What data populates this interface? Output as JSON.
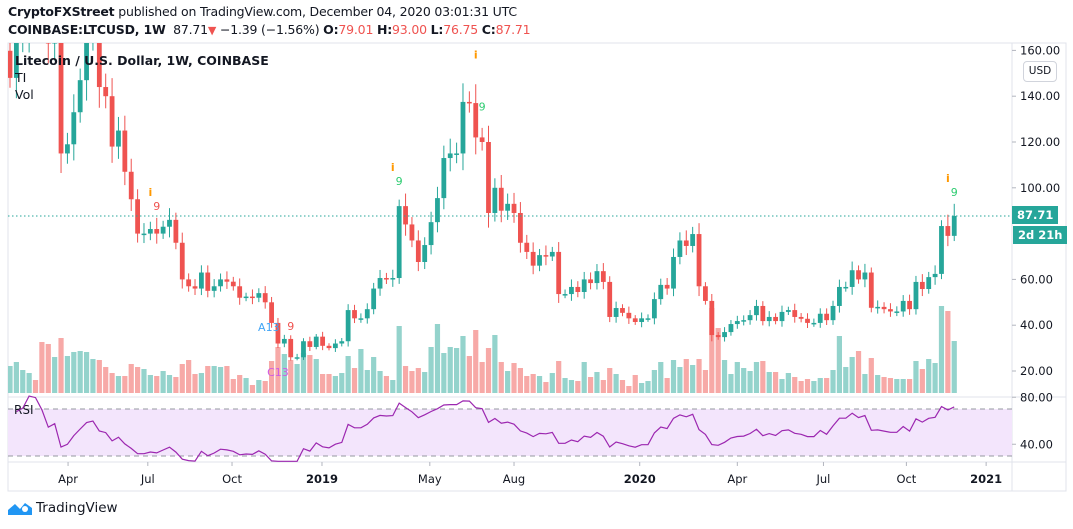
{
  "header": {
    "publisher": "CryptoFXStreet",
    "published_text": "published on TradingView.com, December 04, 2020 03:01:31 UTC",
    "symbol": "COINBASE:LTCUSD, 1W",
    "last": "87.71",
    "change": "−1.39 (−1.56%)",
    "o_label": "O:",
    "o": "79.01",
    "h_label": "H:",
    "h": "93.00",
    "l_label": "L:",
    "l": "76.75",
    "c_label": "C:",
    "c": "87.71"
  },
  "legend": {
    "title": "Litecoin / U.S. Dollar, 1W, COINBASE",
    "indicator1": "TI",
    "indicator2": "Vol"
  },
  "price_axis": {
    "currency": "USD",
    "last_price_label": "87.71",
    "countdown_label": "2d 21h"
  },
  "footer": {
    "brand": "TradingView"
  },
  "colors": {
    "up": "#26a69a",
    "down": "#ef5350",
    "up_vol": "#94d3cc",
    "down_vol": "#f7a9a7",
    "rsi": "#9c27b0",
    "rsi_band": "#f3e5fc",
    "td_buy": "#2ecc71",
    "td_sell": "#ef5350",
    "td_info": "#ff9800",
    "a13": "#42a5f5",
    "c13": "#d05ce3"
  },
  "chart_data": {
    "type": "candlestick",
    "interval": "1W",
    "ylim": [
      13,
      162
    ],
    "price_ticks": [
      20,
      40,
      60,
      100,
      120,
      140,
      160
    ],
    "time_ticks": [
      "Apr",
      "Jul",
      "Oct",
      "2019",
      "May",
      "Aug",
      "2020",
      "Apr",
      "Jul",
      "Oct",
      "2021"
    ],
    "closes": [
      148,
      165,
      170,
      210,
      205,
      190,
      163,
      170,
      115,
      119,
      133,
      147,
      165,
      170,
      144,
      140,
      118,
      125,
      107,
      95,
      80,
      80,
      82,
      80,
      83,
      86,
      76,
      60,
      57,
      56,
      63,
      55,
      57,
      60,
      59,
      57,
      52,
      52.5,
      52,
      54,
      50,
      41,
      32,
      34,
      26,
      26,
      33,
      30.5,
      35,
      31,
      30,
      32,
      33,
      46.6,
      43,
      43,
      47,
      56,
      60.6,
      60,
      60.6,
      92,
      84,
      77,
      67.6,
      75,
      85,
      95.5,
      113,
      115,
      115,
      137.5,
      137,
      122,
      120,
      89,
      100,
      90,
      93,
      89,
      76,
      72,
      66,
      70.6,
      70,
      72,
      53.6,
      53.6,
      56.7,
      54.5,
      60,
      58.4,
      63.6,
      58.9,
      43.6,
      47.5,
      45.4,
      43,
      41.4,
      43,
      43,
      51.4,
      57.6,
      56,
      69.8,
      77,
      74.6,
      79.8,
      57,
      50.6,
      35.7,
      34.8,
      37,
      40.5,
      41.8,
      42.2,
      44.4,
      48.4,
      41.8,
      43.6,
      41.8,
      45.8,
      46.6,
      43.6,
      42.8,
      41,
      41,
      45,
      42.2,
      48.4,
      56.7,
      56.7,
      64,
      60,
      63,
      47.6,
      48,
      47,
      46,
      46,
      50.6,
      47,
      58.9,
      55.8,
      61,
      62.4,
      83.3,
      79,
      87.71
    ],
    "last_bar": {
      "open": 79.01,
      "high": 93.0,
      "low": 76.75,
      "close": 87.71
    },
    "volume_relative": [
      27,
      31,
      23,
      20,
      13,
      51,
      49,
      36,
      55,
      37,
      41,
      42,
      41,
      34,
      33,
      26,
      20,
      17,
      17,
      29,
      26,
      24,
      18,
      17,
      22,
      18,
      16,
      29,
      33,
      19,
      20,
      27,
      27,
      26,
      27,
      14,
      18,
      15,
      8,
      13,
      12,
      32,
      46,
      39,
      33,
      29,
      40,
      38,
      34,
      19,
      19,
      17,
      20,
      37,
      25,
      44,
      23,
      36,
      22,
      17,
      13,
      67,
      27,
      22,
      25,
      21,
      46,
      69,
      40,
      46,
      45,
      57,
      37,
      63,
      31,
      45,
      58,
      31,
      22,
      30,
      25,
      17,
      19,
      17,
      11,
      20,
      32,
      15,
      13,
      12,
      31,
      16,
      21,
      13,
      25,
      19,
      13,
      7,
      18,
      10,
      12,
      23,
      31,
      15,
      33,
      26,
      34,
      28,
      34,
      23,
      85,
      65,
      33,
      19,
      31,
      25,
      22,
      31,
      32,
      21,
      21,
      14,
      20,
      16,
      12,
      14,
      12,
      15,
      15,
      23,
      57,
      26,
      36,
      42,
      19,
      35,
      18,
      16,
      15,
      14,
      14,
      14,
      32,
      24,
      34,
      30,
      87,
      82,
      52
    ],
    "rsi": {
      "label": "RSI",
      "ticks": [
        80,
        40
      ],
      "upper_band": 70,
      "lower_band": 30,
      "ylim": [
        25.5,
        81
      ]
    },
    "annotations": [
      {
        "bar": 22,
        "text": "i",
        "kind": "td_info"
      },
      {
        "bar": 23,
        "text": "9",
        "kind": "td_sell"
      },
      {
        "bar": 41,
        "text": "A13",
        "kind": "a13"
      },
      {
        "bar": 42,
        "text": "C13",
        "kind": "c13"
      },
      {
        "bar": 44,
        "text": "9",
        "kind": "td_sell"
      },
      {
        "bar": 60,
        "text": "i",
        "kind": "td_info"
      },
      {
        "bar": 61,
        "text": "9",
        "kind": "td_buy"
      },
      {
        "bar": 73,
        "text": "i",
        "kind": "td_info"
      },
      {
        "bar": 74,
        "text": "9",
        "kind": "td_buy"
      },
      {
        "bar": 147,
        "text": "i",
        "kind": "td_info"
      },
      {
        "bar": 148,
        "text": "9",
        "kind": "td_buy"
      }
    ]
  }
}
